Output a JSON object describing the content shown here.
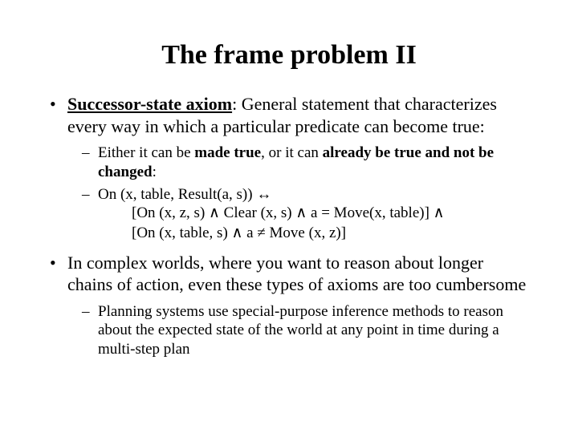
{
  "title": "The frame problem II",
  "bullets": [
    {
      "lead": "Successor-state axiom",
      "rest": ": General statement that characterizes every way in which a particular predicate can become true:",
      "sub": [
        {
          "pre": "Either it can be ",
          "b1": "made true",
          "mid": ", or it can ",
          "b2": "already be true and not be changed",
          "post": ":"
        },
        {
          "line1": "On (x, table, Result(a, s)) ↔",
          "line2": "[On (x, z, s) ∧ Clear (x, s) ∧ a = Move(x, table)] ∧",
          "line3": "[On (x, table, s) ∧ a ≠ Move (x, z)]"
        }
      ]
    },
    {
      "text": "In complex worlds, where you want to reason about longer chains of action, even these types of axioms are too cumbersome",
      "sub": [
        {
          "text": "Planning systems use special-purpose inference methods to reason about the expected state of the world at any point in time during a multi-step plan"
        }
      ]
    }
  ]
}
